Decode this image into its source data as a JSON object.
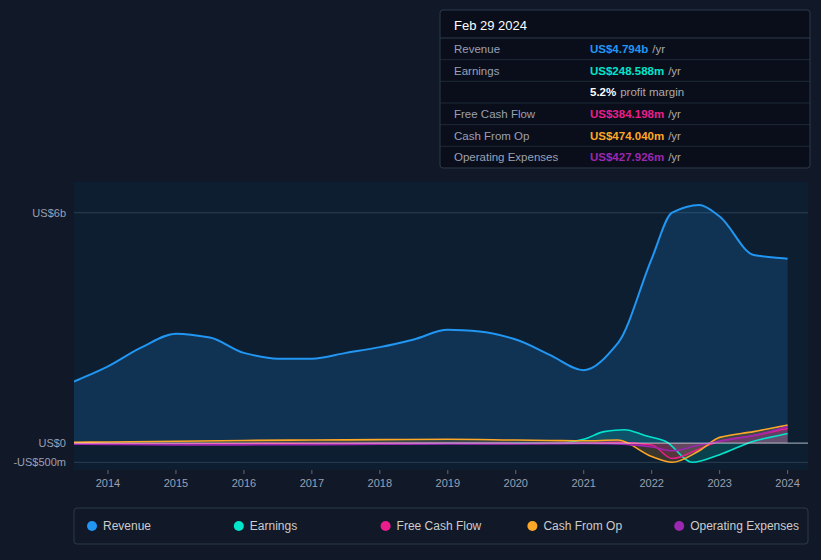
{
  "chart_data": {
    "type": "area",
    "title": "Feb 29 2024",
    "xlim": [
      2013.5,
      2024.3
    ],
    "xticks": [
      2014,
      2015,
      2016,
      2017,
      2018,
      2019,
      2020,
      2021,
      2022,
      2023,
      2024
    ],
    "ylim": [
      -700,
      6800
    ],
    "yticks": [
      {
        "value": -500,
        "label": "-US$500m"
      },
      {
        "value": 0,
        "label": "US$0"
      },
      {
        "value": 6000,
        "label": "US$6b"
      }
    ],
    "grid": true,
    "legend": "bottom",
    "series": [
      {
        "name": "Revenue",
        "color": "#2196f3",
        "x": [
          2013.5,
          2014.0,
          2014.5,
          2015.0,
          2015.5,
          2016.0,
          2016.5,
          2017.0,
          2017.5,
          2018.0,
          2018.5,
          2019.0,
          2019.5,
          2020.0,
          2020.5,
          2021.0,
          2021.5,
          2022.0,
          2022.3,
          2022.7,
          2023.0,
          2023.5,
          2024.0
        ],
        "values": [
          1600,
          2000,
          2500,
          2850,
          2750,
          2350,
          2200,
          2200,
          2350,
          2500,
          2700,
          2950,
          2900,
          2700,
          2300,
          1900,
          2600,
          4800,
          6000,
          6200,
          5900,
          4900,
          4800
        ]
      },
      {
        "name": "Earnings",
        "color": "#00e5cc",
        "x": [
          2013.5,
          2014.0,
          2015.0,
          2016.0,
          2017.0,
          2018.0,
          2019.0,
          2020.0,
          2020.7,
          2021.0,
          2021.3,
          2021.6,
          2021.9,
          2022.2,
          2022.6,
          2023.0,
          2023.5,
          2024.0
        ],
        "values": [
          -20,
          -20,
          -30,
          -25,
          -20,
          -10,
          -5,
          -5,
          5,
          100,
          300,
          350,
          200,
          50,
          -500,
          -300,
          50,
          250
        ]
      },
      {
        "name": "Free Cash Flow",
        "color": "#e91e8c",
        "x": [
          2013.5,
          2014.0,
          2015.0,
          2016.0,
          2017.0,
          2018.0,
          2019.0,
          2020.0,
          2020.5,
          2021.0,
          2021.5,
          2022.0,
          2022.3,
          2022.7,
          2023.0,
          2023.5,
          2024.0
        ],
        "values": [
          -15,
          -20,
          -25,
          -15,
          -10,
          -5,
          -5,
          -8,
          -5,
          0,
          20,
          -50,
          -400,
          -150,
          50,
          200,
          380
        ]
      },
      {
        "name": "Cash From Op",
        "color": "#ffa726",
        "x": [
          2013.5,
          2014.0,
          2015.0,
          2016.0,
          2017.0,
          2018.0,
          2019.0,
          2020.0,
          2020.5,
          2021.0,
          2021.5,
          2022.0,
          2022.3,
          2022.7,
          2023.0,
          2023.5,
          2024.0
        ],
        "values": [
          20,
          30,
          50,
          70,
          80,
          90,
          100,
          80,
          70,
          60,
          80,
          -350,
          -500,
          -200,
          150,
          300,
          474
        ]
      },
      {
        "name": "Operating Expenses",
        "color": "#9c27b0",
        "x": [
          2013.5,
          2014.0,
          2015.0,
          2016.0,
          2017.0,
          2018.0,
          2019.0,
          2020.0,
          2020.5,
          2021.0,
          2021.5,
          2022.0,
          2022.3,
          2022.7,
          2023.0,
          2023.5,
          2024.0
        ],
        "values": [
          -25,
          -35,
          -45,
          -45,
          -40,
          -30,
          -20,
          -20,
          -15,
          -10,
          -20,
          -100,
          -200,
          -50,
          50,
          200,
          430
        ]
      }
    ],
    "info_box": {
      "rows": [
        {
          "label": "Revenue",
          "value": "US$4.794b",
          "suffix": " /yr",
          "color": "#2196f3"
        },
        {
          "label": "Earnings",
          "value": "US$248.588m",
          "suffix": " /yr",
          "color": "#00e5cc"
        },
        {
          "value": "5.2%",
          "suffix": " profit margin",
          "color": "#ffffff"
        },
        {
          "label": "Free Cash Flow",
          "value": "US$384.198m",
          "suffix": " /yr",
          "color": "#e91e8c"
        },
        {
          "label": "Cash From Op",
          "value": "US$474.040m",
          "suffix": " /yr",
          "color": "#ffa726"
        },
        {
          "label": "Operating Expenses",
          "value": "US$427.926m",
          "suffix": " /yr",
          "color": "#9c27b0"
        }
      ]
    }
  }
}
